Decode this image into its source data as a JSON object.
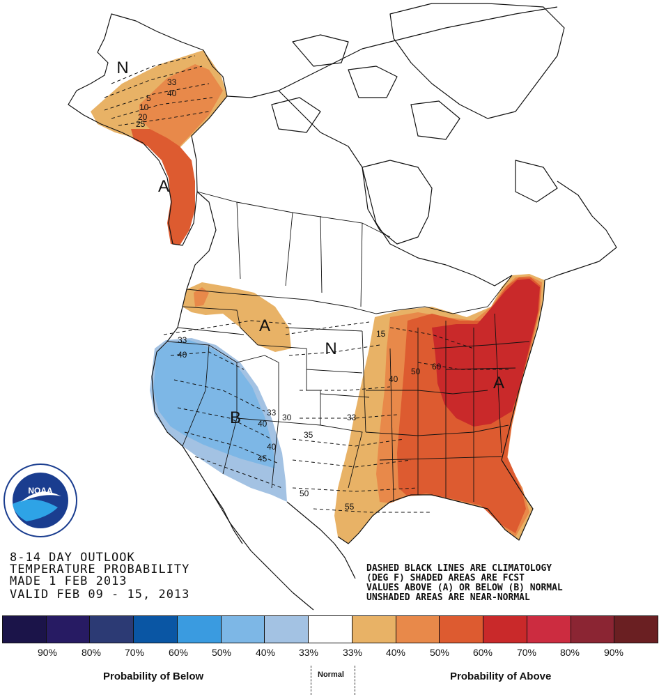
{
  "title_block": {
    "line1": "8-14 DAY OUTLOOK",
    "line2": "TEMPERATURE PROBABILITY",
    "line3": "MADE  1 FEB 2013",
    "line4": "VALID  FEB 09 - 15, 2013"
  },
  "notes": {
    "line1": "DASHED BLACK LINES ARE CLIMATOLOGY",
    "line2": "(DEG F) SHADED AREAS ARE FCST",
    "line3": "VALUES ABOVE (A) OR BELOW (B) NORMAL",
    "line4": "UNSHADED AREAS ARE NEAR-NORMAL"
  },
  "logo": {
    "text": "NOAA",
    "ring_text": "NATIONAL OCEANIC AND ATMOSPHERIC ADMINISTRATION · U.S. DEPARTMENT OF COMMERCE"
  },
  "region_labels": {
    "alaska_north": "N",
    "alaska_south": "A",
    "pacific_nw": "A",
    "central": "N",
    "west": "B",
    "east": "A"
  },
  "contour_labels": {
    "ak_1": "33",
    "ak_2": "40",
    "ak_3": "5",
    "ak_4": "10",
    "ak_5": "20",
    "ak_6": "25",
    "west_33": "33",
    "west_40": "40",
    "sw_33": "33",
    "sw_40": "40",
    "sw_40b": "40",
    "sw_45": "45",
    "c_30": "30",
    "c_33": "33",
    "c_35": "35",
    "c_50": "50",
    "c_55": "55",
    "e_15": "15",
    "e_40": "40",
    "e_50": "50",
    "e_60": "60"
  },
  "legend": {
    "colors": [
      "#1b1449",
      "#271b63",
      "#2c3a74",
      "#0a56a4",
      "#3a9be0",
      "#7db7e6",
      "#a3c2e3",
      "#ffffff",
      "#e8b266",
      "#e8894a",
      "#dd5b30",
      "#c9292a",
      "#cc2c40",
      "#8b2533",
      "#6a1f22"
    ],
    "below_pcts": [
      "90%",
      "80%",
      "70%",
      "60%",
      "50%",
      "40%",
      "33%"
    ],
    "above_pcts": [
      "33%",
      "40%",
      "50%",
      "60%",
      "70%",
      "80%",
      "90%"
    ],
    "below_label": "Probability of Below",
    "normal_label": "Normal",
    "above_label": "Probability of Above"
  }
}
